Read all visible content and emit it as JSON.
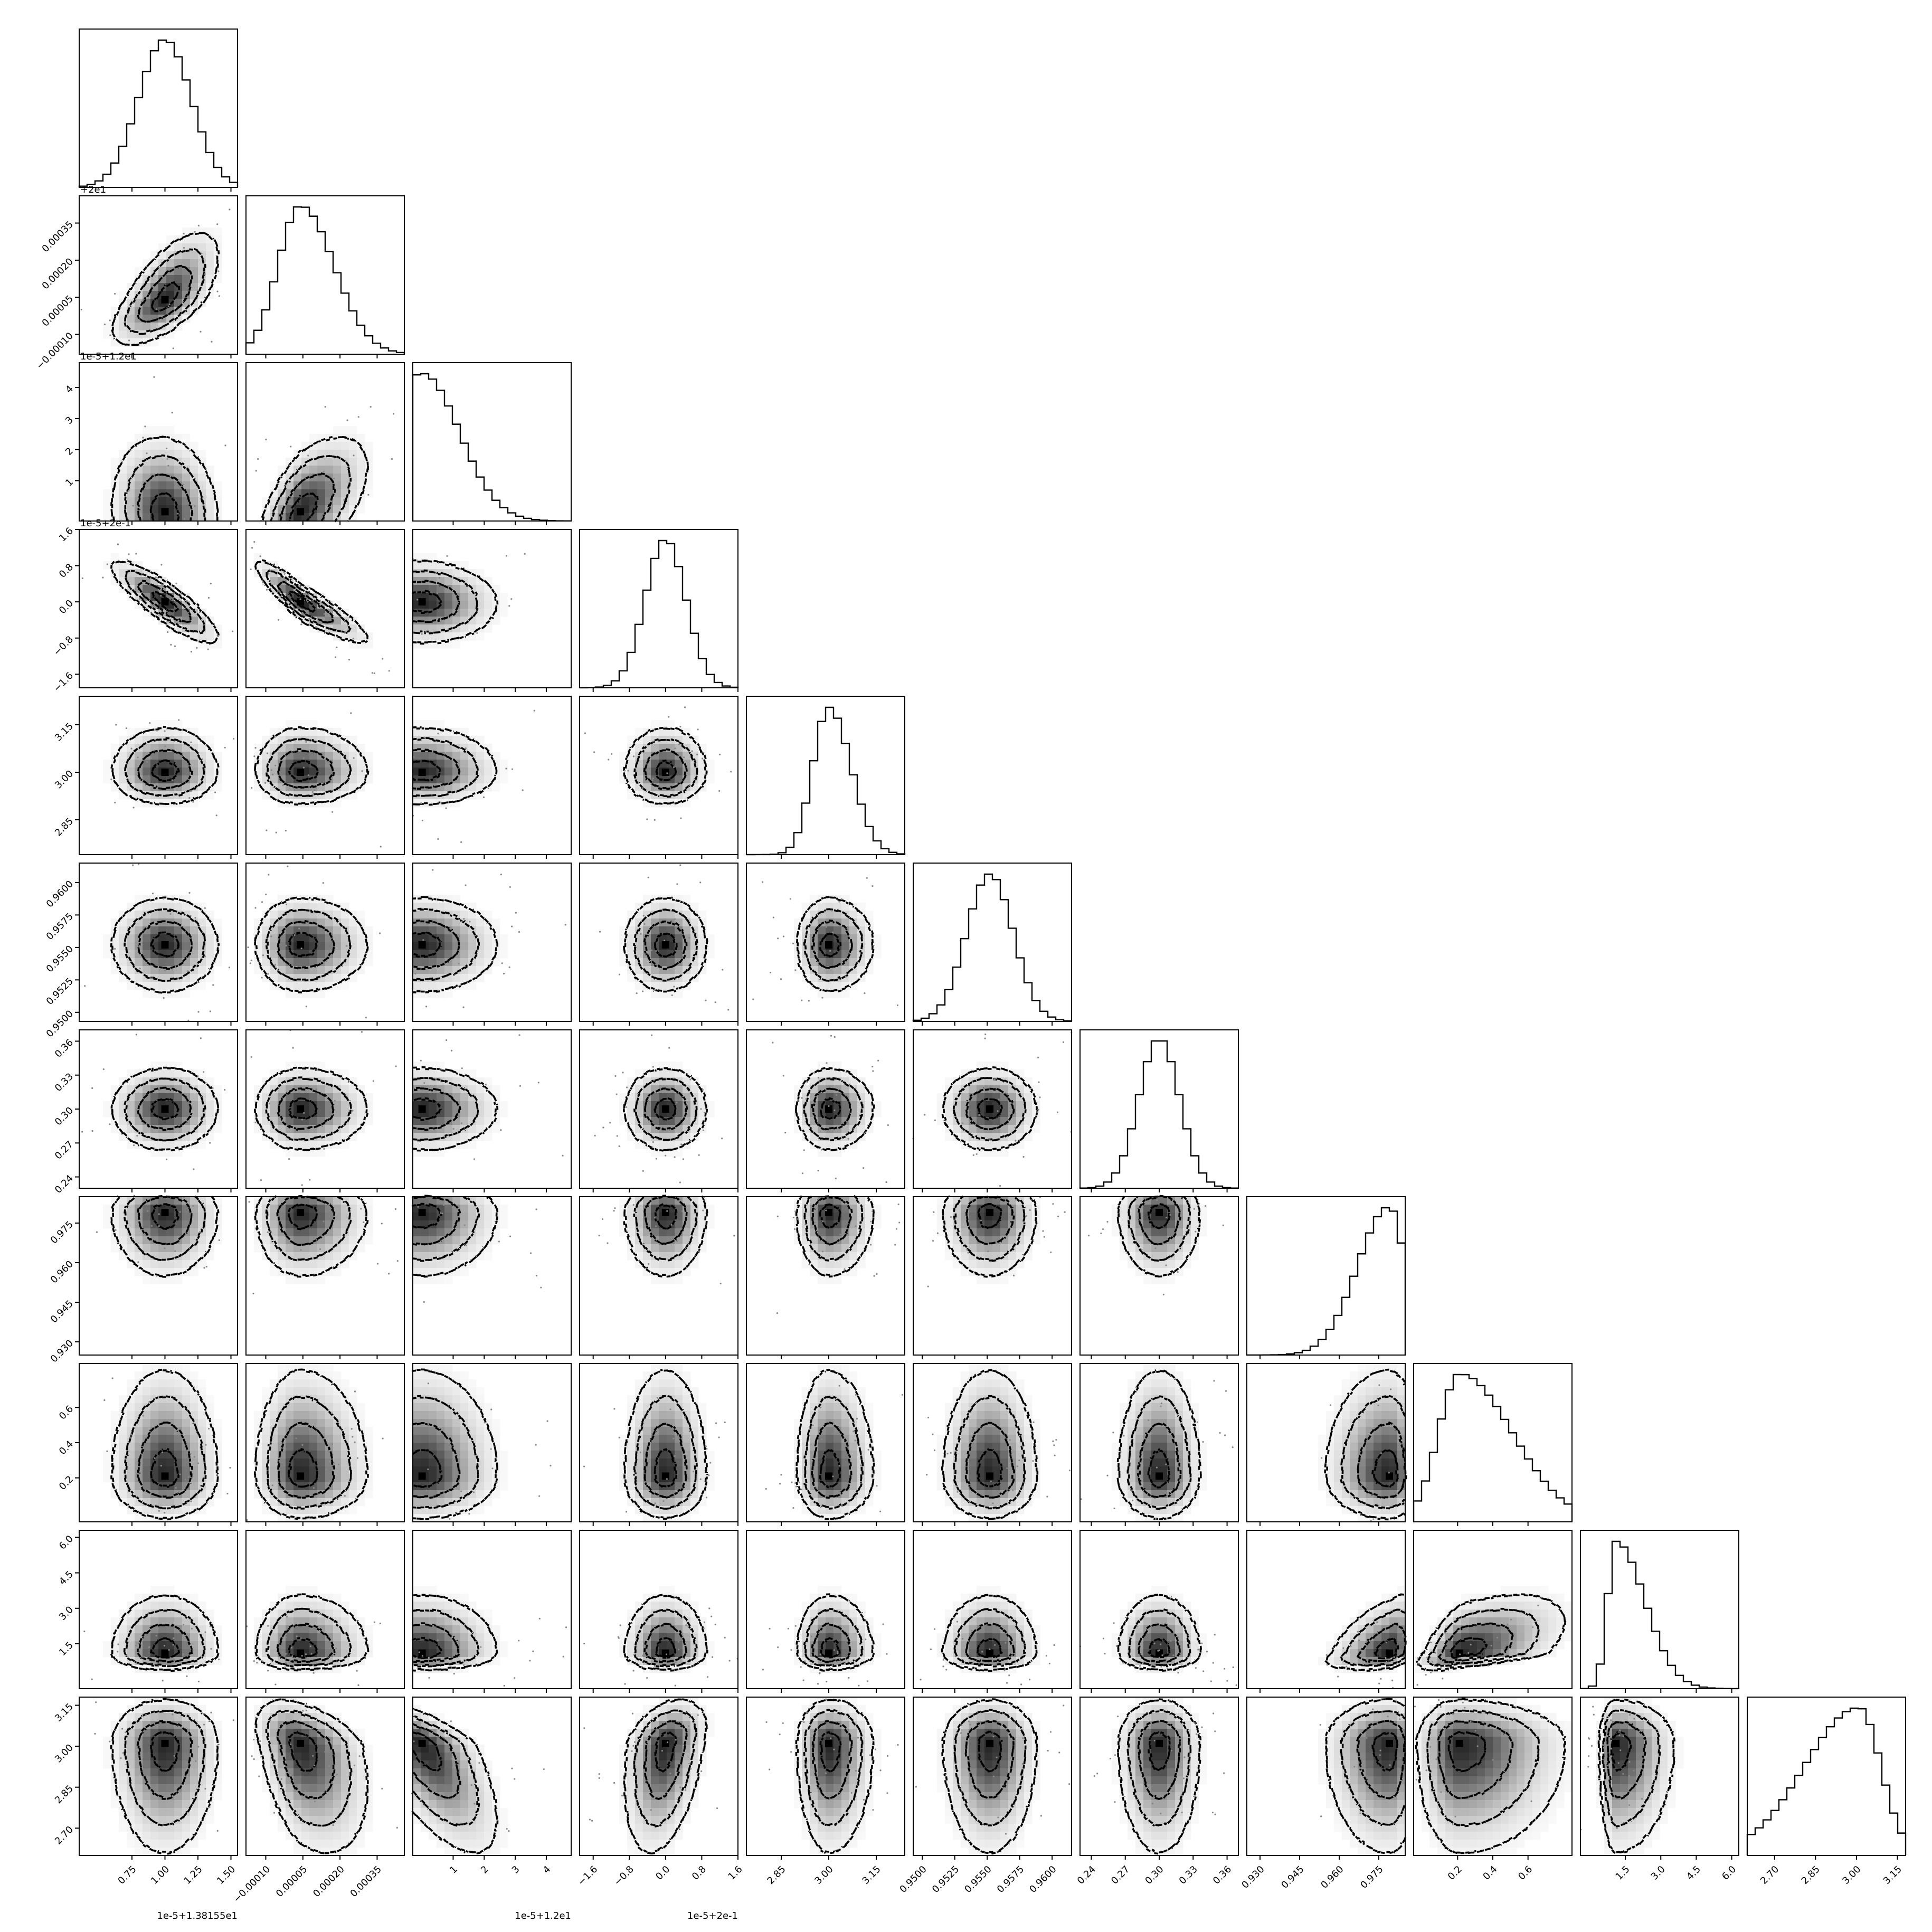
{
  "chart_data": {
    "type": "corner",
    "title": "",
    "n_params": 11,
    "labels": [
      "",
      "",
      "",
      "",
      "",
      "",
      "",
      "",
      "",
      "",
      ""
    ],
    "offset_text": [
      "1e-5+1.38155e1",
      "+2e1",
      "1e-5+1.2e1",
      "1e-5+2e-1",
      "",
      "",
      "",
      "",
      "",
      "",
      ""
    ],
    "axes": [
      {
        "range": [
          0.35,
          1.55
        ],
        "ticks": [
          0.75,
          1.0,
          1.25,
          1.5
        ],
        "tick_labels": [
          "0.75",
          "1.00",
          "1.25",
          "1.50"
        ],
        "peak": 1.0,
        "sd": 0.2,
        "skew": 0
      },
      {
        "range": [
          -0.00018,
          0.00046
        ],
        "ticks": [
          -0.0001,
          5e-05,
          0.0002,
          0.00035
        ],
        "tick_labels": [
          "−0.00010",
          "0.00005",
          "0.00020",
          "0.00035"
        ],
        "peak": 4e-05,
        "sd": 9e-05,
        "skew": 0.5
      },
      {
        "range": [
          -0.3,
          4.8
        ],
        "ticks": [
          1,
          2,
          3,
          4
        ],
        "tick_labels": [
          "1",
          "2",
          "3",
          "4"
        ],
        "peak": 0,
        "sd": 1.2,
        "skew": 0
      },
      {
        "range": [
          -1.9,
          1.6
        ],
        "ticks": [
          -1.6,
          -0.8,
          0.0,
          0.8,
          1.6
        ],
        "tick_labels": [
          "−1.6",
          "−0.8",
          "0.0",
          "0.8",
          "1.6"
        ],
        "peak": 0.0,
        "sd": 0.45,
        "skew": 0
      },
      {
        "range": [
          2.74,
          3.24
        ],
        "ticks": [
          2.85,
          3.0,
          3.15
        ],
        "tick_labels": [
          "2.85",
          "3.00",
          "3.15"
        ],
        "peak": 3.0,
        "sd": 0.05,
        "skew": 0.4
      },
      {
        "range": [
          0.9493,
          0.9615
        ],
        "ticks": [
          0.95,
          0.9525,
          0.955,
          0.9575,
          0.96
        ],
        "tick_labels": [
          "0.9500",
          "0.9525",
          "0.9550",
          "0.9575",
          "0.9600"
        ],
        "peak": 0.9552,
        "sd": 0.0018,
        "skew": 0
      },
      {
        "range": [
          0.23,
          0.37
        ],
        "ticks": [
          0.24,
          0.27,
          0.3,
          0.33,
          0.36
        ],
        "tick_labels": [
          "0.24",
          "0.27",
          "0.30",
          "0.33",
          "0.36"
        ],
        "peak": 0.3,
        "sd": 0.018,
        "skew": 0
      },
      {
        "range": [
          0.925,
          0.985
        ],
        "ticks": [
          0.93,
          0.945,
          0.96,
          0.975
        ],
        "tick_labels": [
          "0.930",
          "0.945",
          "0.960",
          "0.975"
        ],
        "peak": 0.979,
        "sd": 0.006,
        "skew": -1
      },
      {
        "range": [
          -0.05,
          0.85
        ],
        "ticks": [
          0.2,
          0.4,
          0.6
        ],
        "tick_labels": [
          "0.2",
          "0.4",
          "0.6"
        ],
        "peak": 0.21,
        "sd": 0.12,
        "skew": 1.5
      },
      {
        "range": [
          -0.4,
          6.3
        ],
        "ticks": [
          1.5,
          3.0,
          4.5,
          6.0
        ],
        "tick_labels": [
          "1.5",
          "3.0",
          "4.5",
          "6.0"
        ],
        "peak": 1.1,
        "sd": 0.35,
        "skew": 2.5
      },
      {
        "range": [
          2.6,
          3.18
        ],
        "ticks": [
          2.7,
          2.85,
          3.0,
          3.15
        ],
        "tick_labels": [
          "2.70",
          "2.85",
          "3.00",
          "3.15"
        ],
        "peak": 3.01,
        "sd": 0.08,
        "skew": -1.5
      }
    ],
    "correlations": {
      "1-0": 0.65,
      "2-0": -0.1,
      "2-1": 0.6,
      "3-0": -0.85,
      "3-1": -0.9,
      "3-2": -0.05,
      "10-1": -0.4,
      "10-2": -0.7,
      "10-3": 0.35,
      "9-7": 0.4,
      "9-8": 0.55
    },
    "contour_levels": [
      0.5,
      1.0,
      1.5,
      2.0
    ],
    "colors": {
      "ink": "#000000",
      "density_max": "#000000",
      "density_min": "#ffffff"
    }
  }
}
